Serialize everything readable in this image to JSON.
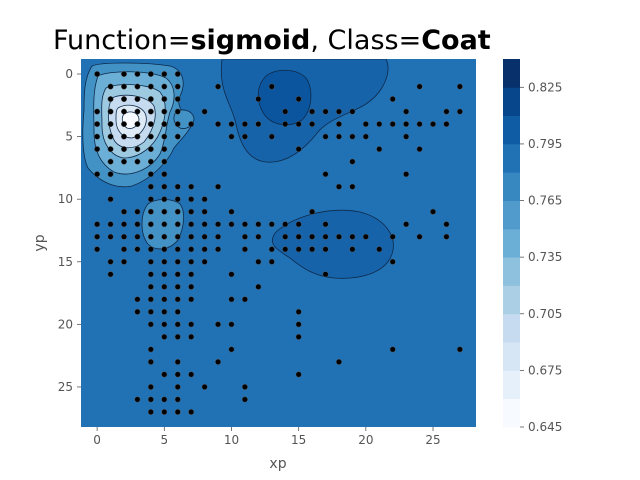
{
  "chart_data": {
    "type": "contour",
    "title": {
      "prefix": "Function=",
      "function": "sigmoid",
      "sep": ", Class=",
      "class": "Coat"
    },
    "xlabel": "xp",
    "ylabel": "yp",
    "xlim": [
      -1.2,
      28.2
    ],
    "ylim": [
      28.2,
      -1.2
    ],
    "y_inverted": true,
    "grid": false,
    "x_ticks": [
      0,
      5,
      10,
      15,
      20,
      25
    ],
    "y_ticks": [
      0,
      5,
      10,
      15,
      20,
      25
    ],
    "colorbar": {
      "cmap": "Blues",
      "levels": [
        0.645,
        0.66,
        0.675,
        0.69,
        0.705,
        0.72,
        0.735,
        0.75,
        0.765,
        0.78,
        0.795,
        0.81,
        0.825,
        0.84
      ],
      "tick_values": [
        "0.645",
        "0.675",
        "0.705",
        "0.735",
        "0.765",
        "0.795",
        "0.825"
      ]
    },
    "background_value": 0.79,
    "regions": [
      {
        "name": "low-value cluster",
        "x": 3.5,
        "y": 4.0,
        "value_min": 0.645
      },
      {
        "name": "high-value top",
        "x": 14.5,
        "y": 2.5,
        "value_max": 0.83
      },
      {
        "name": "high-value middle",
        "x": 17.5,
        "y": 14.0,
        "value_max": 0.81
      }
    ],
    "points": [
      [
        0,
        0
      ],
      [
        2,
        0
      ],
      [
        3,
        0
      ],
      [
        4,
        0
      ],
      [
        5,
        0
      ],
      [
        6,
        0
      ],
      [
        9,
        1
      ],
      [
        13,
        1
      ],
      [
        15,
        2
      ],
      [
        24,
        1
      ],
      [
        27,
        1
      ],
      [
        1,
        1
      ],
      [
        2,
        1
      ],
      [
        3,
        1
      ],
      [
        4,
        1
      ],
      [
        5,
        1
      ],
      [
        6,
        1
      ],
      [
        1,
        2
      ],
      [
        2,
        2
      ],
      [
        3,
        2
      ],
      [
        4,
        2
      ],
      [
        5,
        2
      ],
      [
        6,
        2
      ],
      [
        12,
        2
      ],
      [
        22,
        2
      ],
      [
        0,
        3
      ],
      [
        1,
        3
      ],
      [
        2,
        3
      ],
      [
        3,
        3
      ],
      [
        4,
        3
      ],
      [
        5,
        3
      ],
      [
        6,
        3
      ],
      [
        8,
        3
      ],
      [
        14,
        3
      ],
      [
        16,
        3
      ],
      [
        17,
        3
      ],
      [
        18,
        3
      ],
      [
        19,
        3
      ],
      [
        23,
        3
      ],
      [
        26,
        3
      ],
      [
        27,
        3
      ],
      [
        0,
        4
      ],
      [
        1,
        4
      ],
      [
        2,
        4
      ],
      [
        3,
        4
      ],
      [
        4,
        4
      ],
      [
        5,
        4
      ],
      [
        6,
        4
      ],
      [
        7,
        4
      ],
      [
        9,
        4
      ],
      [
        10,
        4
      ],
      [
        11,
        4
      ],
      [
        12,
        4
      ],
      [
        14,
        4
      ],
      [
        15,
        4
      ],
      [
        16,
        4
      ],
      [
        18,
        4
      ],
      [
        20,
        4
      ],
      [
        21,
        4
      ],
      [
        22,
        4
      ],
      [
        23,
        4
      ],
      [
        24,
        4
      ],
      [
        25,
        4
      ],
      [
        26,
        4
      ],
      [
        0,
        5
      ],
      [
        1,
        5
      ],
      [
        2,
        5
      ],
      [
        3,
        5
      ],
      [
        4,
        5
      ],
      [
        5,
        5
      ],
      [
        6,
        5
      ],
      [
        10,
        5
      ],
      [
        11,
        5
      ],
      [
        13,
        5
      ],
      [
        17,
        5
      ],
      [
        18,
        5
      ],
      [
        19,
        5
      ],
      [
        20,
        5
      ],
      [
        23,
        5
      ],
      [
        0,
        6
      ],
      [
        1,
        6
      ],
      [
        2,
        6
      ],
      [
        3,
        6
      ],
      [
        4,
        6
      ],
      [
        5,
        6
      ],
      [
        15,
        6
      ],
      [
        21,
        6
      ],
      [
        24,
        6
      ],
      [
        1,
        7
      ],
      [
        2,
        7
      ],
      [
        3,
        7
      ],
      [
        4,
        7
      ],
      [
        5,
        7
      ],
      [
        19,
        7
      ],
      [
        0,
        8
      ],
      [
        1,
        8
      ],
      [
        4,
        8
      ],
      [
        5,
        8
      ],
      [
        17,
        8
      ],
      [
        23,
        8
      ],
      [
        4,
        9
      ],
      [
        5,
        9
      ],
      [
        6,
        9
      ],
      [
        7,
        9
      ],
      [
        9,
        9
      ],
      [
        18,
        9
      ],
      [
        19,
        9
      ],
      [
        1,
        10
      ],
      [
        4,
        10
      ],
      [
        5,
        10
      ],
      [
        6,
        10
      ],
      [
        7,
        10
      ],
      [
        8,
        10
      ],
      [
        2,
        11
      ],
      [
        3,
        11
      ],
      [
        4,
        11
      ],
      [
        5,
        11
      ],
      [
        6,
        11
      ],
      [
        7,
        11
      ],
      [
        8,
        11
      ],
      [
        10,
        11
      ],
      [
        16,
        11
      ],
      [
        25,
        11
      ],
      [
        0,
        12
      ],
      [
        1,
        12
      ],
      [
        2,
        12
      ],
      [
        3,
        12
      ],
      [
        4,
        12
      ],
      [
        5,
        12
      ],
      [
        6,
        12
      ],
      [
        7,
        12
      ],
      [
        8,
        12
      ],
      [
        9,
        12
      ],
      [
        10,
        12
      ],
      [
        11,
        12
      ],
      [
        12,
        12
      ],
      [
        13,
        12
      ],
      [
        14,
        12
      ],
      [
        15,
        12
      ],
      [
        17,
        12
      ],
      [
        23,
        12
      ],
      [
        26,
        12
      ],
      [
        0,
        13
      ],
      [
        1,
        13
      ],
      [
        2,
        13
      ],
      [
        3,
        13
      ],
      [
        4,
        13
      ],
      [
        5,
        13
      ],
      [
        6,
        13
      ],
      [
        7,
        13
      ],
      [
        8,
        13
      ],
      [
        9,
        13
      ],
      [
        11,
        13
      ],
      [
        12,
        13
      ],
      [
        14,
        13
      ],
      [
        15,
        13
      ],
      [
        16,
        13
      ],
      [
        17,
        13
      ],
      [
        18,
        13
      ],
      [
        19,
        13
      ],
      [
        20,
        13
      ],
      [
        22,
        13
      ],
      [
        24,
        13
      ],
      [
        26,
        13
      ],
      [
        0,
        14
      ],
      [
        2,
        14
      ],
      [
        3,
        14
      ],
      [
        4,
        14
      ],
      [
        5,
        14
      ],
      [
        6,
        14
      ],
      [
        7,
        14
      ],
      [
        8,
        14
      ],
      [
        9,
        14
      ],
      [
        11,
        14
      ],
      [
        13,
        14
      ],
      [
        14,
        14
      ],
      [
        15,
        14
      ],
      [
        16,
        14
      ],
      [
        17,
        14
      ],
      [
        19,
        14
      ],
      [
        21,
        14
      ],
      [
        1,
        15
      ],
      [
        2,
        15
      ],
      [
        4,
        15
      ],
      [
        5,
        15
      ],
      [
        6,
        15
      ],
      [
        7,
        15
      ],
      [
        8,
        15
      ],
      [
        12,
        15
      ],
      [
        13,
        15
      ],
      [
        22,
        15
      ],
      [
        1,
        16
      ],
      [
        4,
        16
      ],
      [
        5,
        16
      ],
      [
        6,
        16
      ],
      [
        7,
        16
      ],
      [
        10,
        16
      ],
      [
        17,
        16
      ],
      [
        4,
        17
      ],
      [
        5,
        17
      ],
      [
        6,
        17
      ],
      [
        7,
        17
      ],
      [
        12,
        17
      ],
      [
        3,
        18
      ],
      [
        4,
        18
      ],
      [
        5,
        18
      ],
      [
        6,
        18
      ],
      [
        7,
        18
      ],
      [
        10,
        18
      ],
      [
        11,
        18
      ],
      [
        3,
        19
      ],
      [
        4,
        19
      ],
      [
        5,
        19
      ],
      [
        6,
        19
      ],
      [
        15,
        19
      ],
      [
        4,
        20
      ],
      [
        5,
        20
      ],
      [
        6,
        20
      ],
      [
        7,
        20
      ],
      [
        9,
        20
      ],
      [
        10,
        20
      ],
      [
        15,
        20
      ],
      [
        5,
        21
      ],
      [
        6,
        21
      ],
      [
        7,
        21
      ],
      [
        15,
        21
      ],
      [
        4,
        22
      ],
      [
        10,
        22
      ],
      [
        22,
        22
      ],
      [
        27,
        22
      ],
      [
        4,
        23
      ],
      [
        6,
        23
      ],
      [
        9,
        23
      ],
      [
        18,
        23
      ],
      [
        5,
        24
      ],
      [
        6,
        24
      ],
      [
        7,
        24
      ],
      [
        15,
        24
      ],
      [
        4,
        25
      ],
      [
        6,
        25
      ],
      [
        8,
        25
      ],
      [
        11,
        25
      ],
      [
        3,
        26
      ],
      [
        4,
        26
      ],
      [
        5,
        26
      ],
      [
        6,
        26
      ],
      [
        11,
        26
      ],
      [
        4,
        27
      ],
      [
        5,
        27
      ],
      [
        6,
        27
      ],
      [
        7,
        27
      ]
    ]
  }
}
